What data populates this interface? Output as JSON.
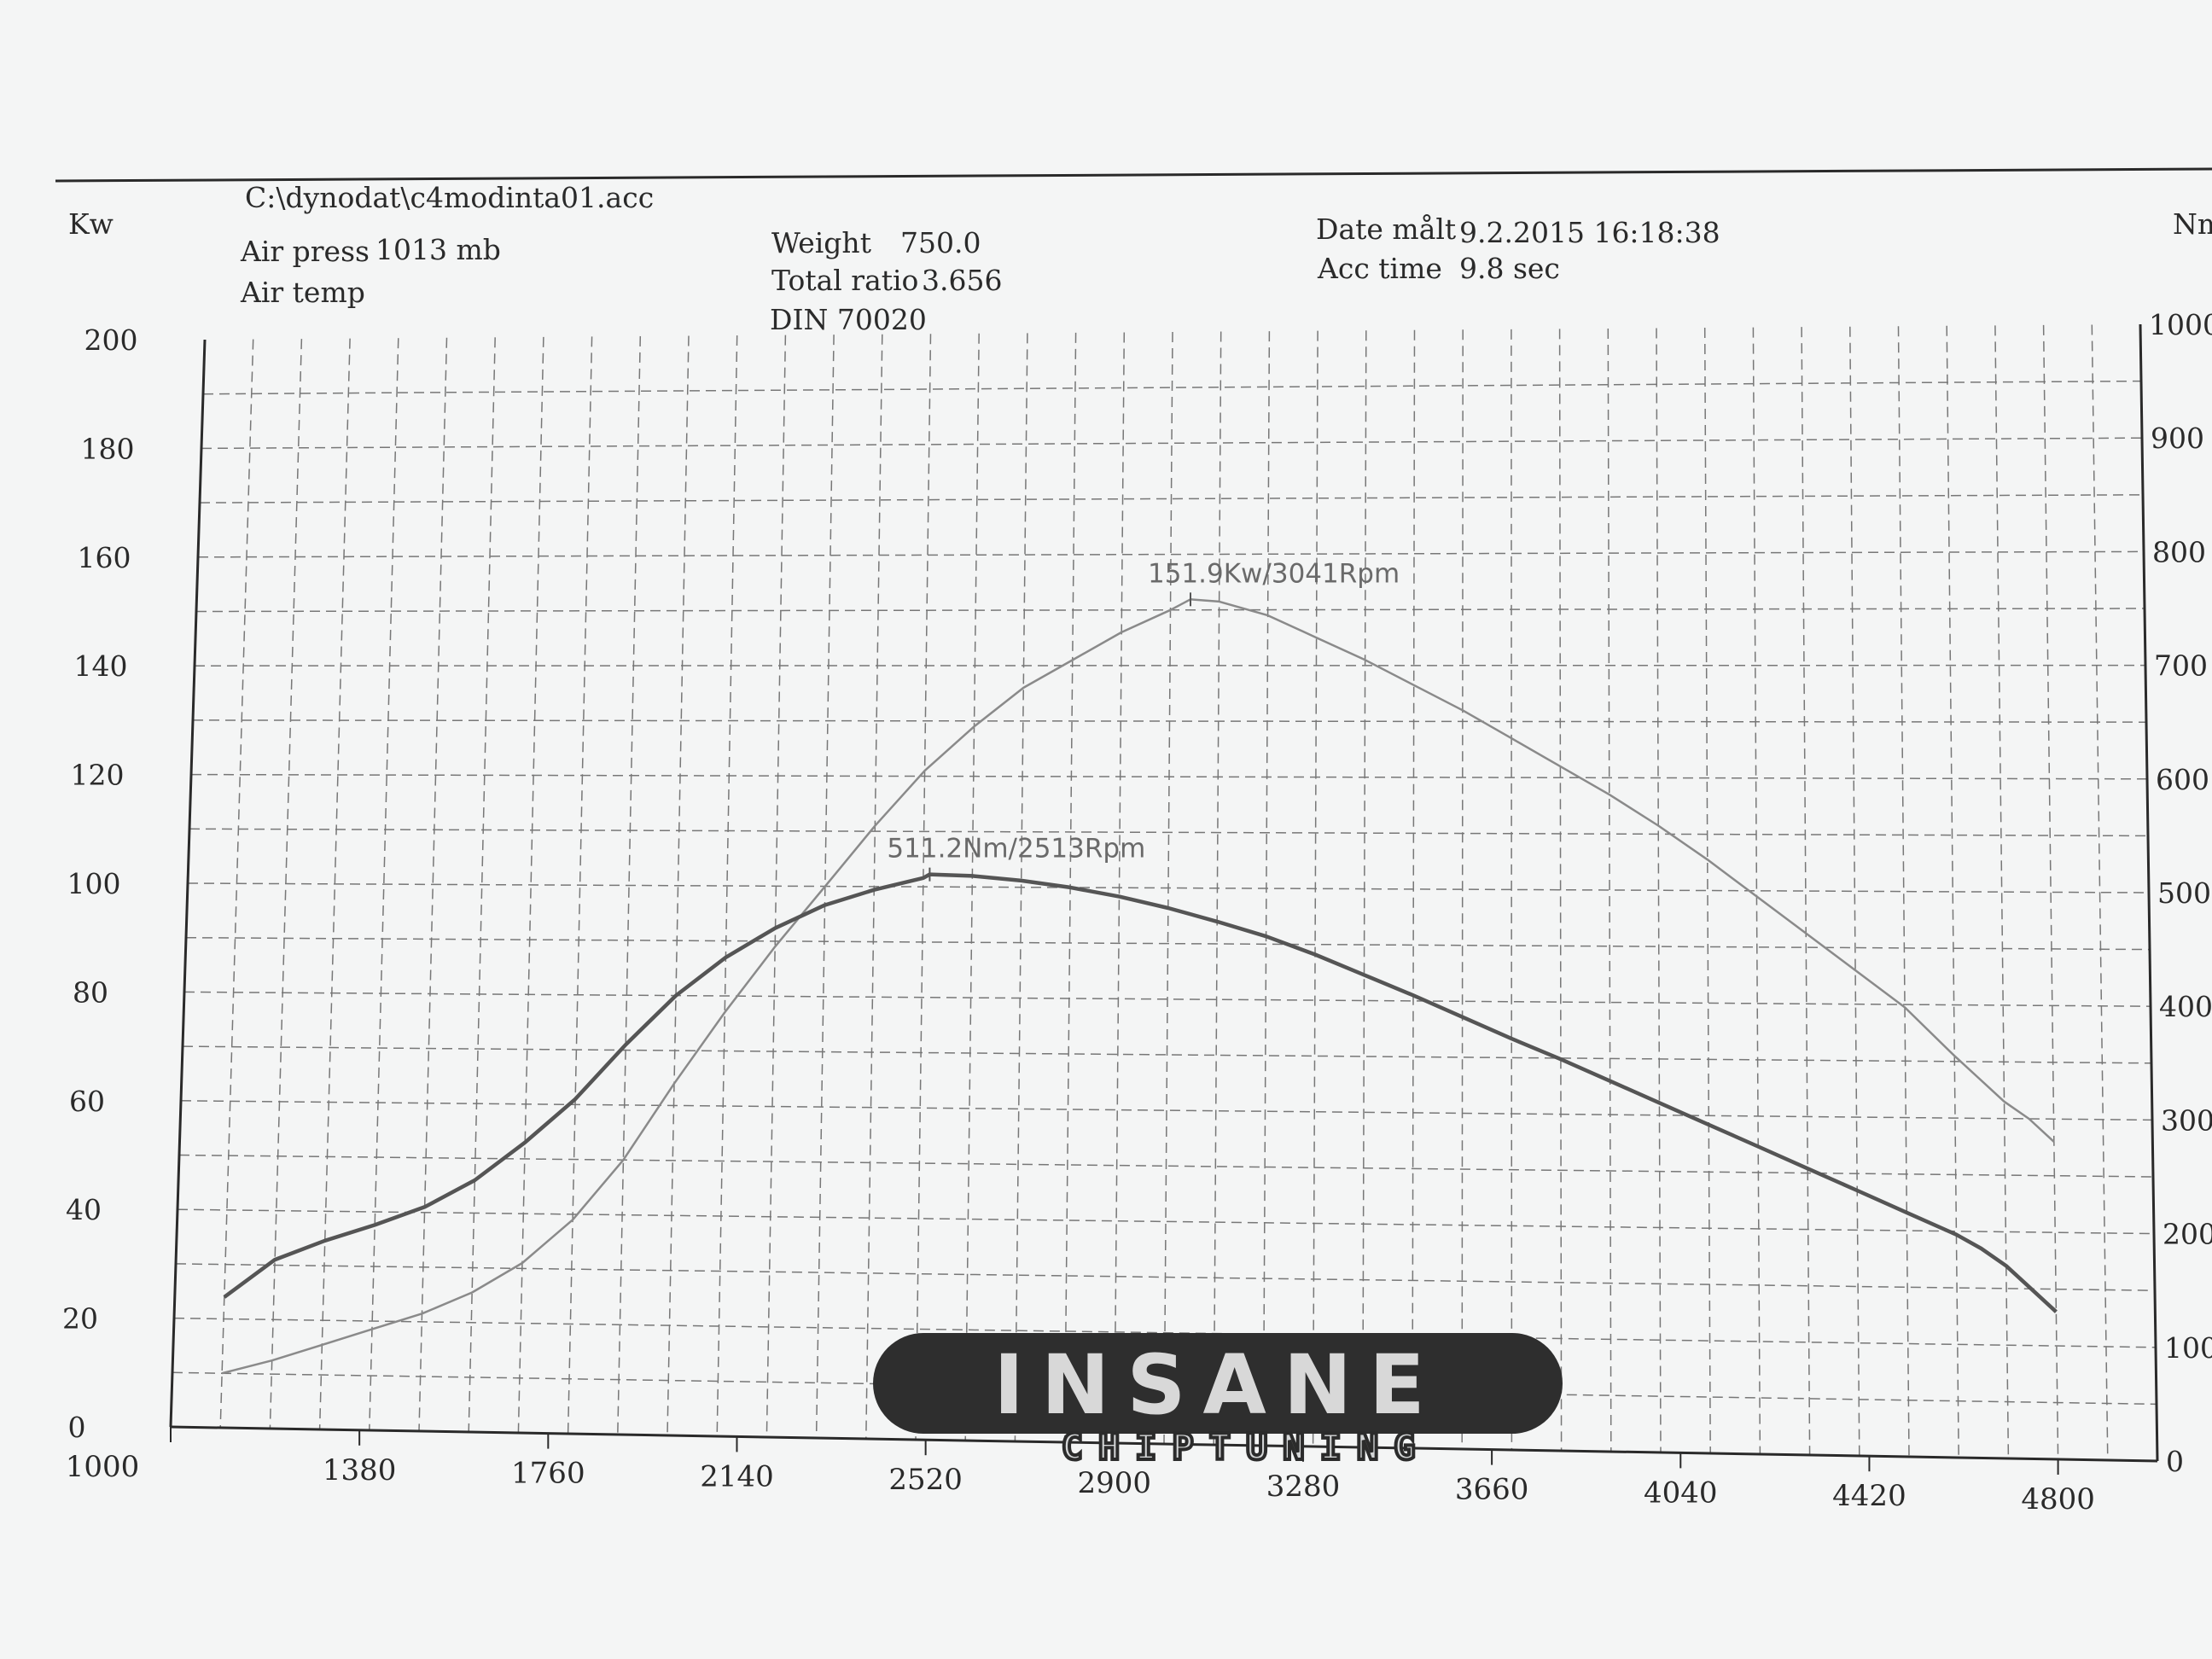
{
  "header": {
    "file_path": "C:\\dynodat\\c4modinta01.acc",
    "air_press_label": "Air press",
    "air_press_value": "1013 mb",
    "air_temp_label": "Air temp",
    "weight_label": "Weight",
    "weight_value": "750.0",
    "total_ratio_label": "Total ratio",
    "total_ratio_value": "3.656",
    "din_label": "DIN 70020",
    "date_label": "Date målt",
    "date_value": "9.2.2015 16:18:38",
    "acc_time_label": "Acc time",
    "acc_time_value": "9.8 sec"
  },
  "logo": {
    "word": "INSANE",
    "sub": "CHIPTUNING"
  },
  "colors": {
    "paper": "#f4f5f5",
    "background": "#d4d6d7",
    "ink": "#2a2a2a",
    "grid": "#777777",
    "power_curve": "#8a8a8a",
    "torque_curve": "#555555"
  },
  "chart_data": {
    "type": "line",
    "title": "",
    "xlabel": "",
    "ylabel_left": "Kw",
    "ylabel_right": "Nm",
    "xlim": [
      1000,
      5000
    ],
    "ylim_left": [
      0,
      200
    ],
    "ylim_right": [
      0,
      1000
    ],
    "x_ticks": [
      "1000",
      "1380",
      "1760",
      "2140",
      "2520",
      "2900",
      "3280",
      "3660",
      "4040",
      "4420",
      "4800"
    ],
    "y_ticks_left": [
      "0",
      "20",
      "40",
      "60",
      "80",
      "100",
      "120",
      "140",
      "160",
      "180",
      "200"
    ],
    "y_ticks_right": [
      "0",
      "100",
      "200",
      "300",
      "400",
      "500",
      "600",
      "700",
      "800",
      "900",
      "1000"
    ],
    "grid": true,
    "series": [
      {
        "name": "Kw",
        "axis": "left",
        "x": [
          1100,
          1200,
          1300,
          1400,
          1500,
          1600,
          1700,
          1800,
          1900,
          2000,
          2100,
          2200,
          2300,
          2400,
          2500,
          2600,
          2700,
          2800,
          2900,
          3000,
          3041,
          3100,
          3200,
          3300,
          3400,
          3500,
          3600,
          3700,
          3800,
          3900,
          4000,
          4100,
          4200,
          4300,
          4400,
          4500,
          4600,
          4650,
          4700,
          4750,
          4800
        ],
        "y": [
          10,
          12.5,
          15.5,
          18.5,
          21.5,
          25.5,
          31,
          39,
          50,
          64,
          77,
          89,
          100,
          111,
          121,
          129,
          136,
          141,
          146,
          150,
          151.9,
          151.5,
          149,
          145,
          141,
          136.5,
          132,
          127,
          122,
          117,
          111.5,
          105.5,
          99,
          92.5,
          86,
          79.5,
          71,
          67,
          63,
          60,
          56
        ]
      },
      {
        "name": "Nm",
        "axis": "right",
        "x": [
          1100,
          1200,
          1300,
          1400,
          1500,
          1600,
          1700,
          1800,
          1900,
          2000,
          2100,
          2200,
          2300,
          2400,
          2500,
          2513,
          2600,
          2700,
          2800,
          2900,
          3000,
          3100,
          3200,
          3300,
          3400,
          3500,
          3600,
          3700,
          3800,
          3900,
          4000,
          4100,
          4200,
          4300,
          4400,
          4500,
          4600,
          4650,
          4700,
          4750,
          4800
        ],
        "y": [
          120,
          155,
          173,
          188,
          205,
          230,
          265,
          305,
          355,
          400,
          435,
          462,
          483,
          497,
          508,
          511.2,
          510,
          506,
          500,
          492,
          482,
          470,
          457,
          441,
          423,
          405,
          386,
          367,
          349,
          330,
          311,
          292,
          273,
          254,
          235,
          216,
          197,
          185,
          170,
          150,
          130
        ]
      }
    ],
    "annotations": [
      {
        "text": "151.9Kw/3041Rpm",
        "series": "Kw",
        "x": 3041,
        "y": 151.9
      },
      {
        "text": "511.2Nm/2513Rpm",
        "series": "Nm",
        "x": 2513,
        "y": 511.2
      }
    ]
  }
}
